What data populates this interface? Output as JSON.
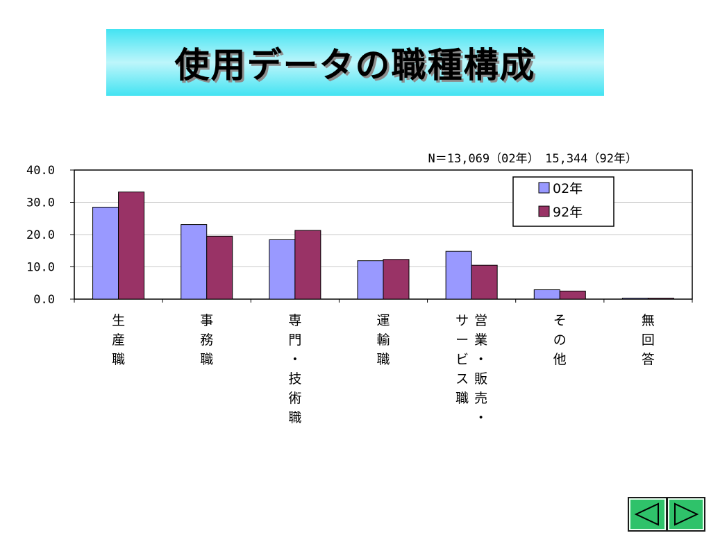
{
  "title": "使用データの職種構成",
  "chart_data": {
    "type": "bar",
    "note": "N＝13,069（02年）　15,344（92年）",
    "categories": [
      [
        "生",
        "産",
        "職"
      ],
      [
        "事",
        "務",
        "職"
      ],
      [
        "専",
        "門",
        "・",
        "技",
        "術",
        "職"
      ],
      [
        "運",
        "輸",
        "職"
      ],
      [
        [
          "営",
          "業",
          "・",
          "販",
          "売",
          "・"
        ],
        [
          "サ",
          "ー",
          "ビ",
          "ス",
          "職"
        ]
      ],
      [
        "そ",
        "の",
        "他"
      ],
      [
        "無",
        "回",
        "答"
      ]
    ],
    "series": [
      {
        "name": "02年",
        "color": "#9999ff",
        "values": [
          28.5,
          23.1,
          18.4,
          11.9,
          14.8,
          2.9,
          0.3
        ]
      },
      {
        "name": "92年",
        "color": "#993366",
        "values": [
          33.2,
          19.5,
          21.3,
          12.3,
          10.5,
          2.5,
          0.3
        ]
      }
    ],
    "ylim": [
      0,
      40
    ],
    "yticks": [
      "0.0",
      "10.0",
      "20.0",
      "30.0",
      "40.0"
    ],
    "grid": true,
    "legend": "top-right"
  },
  "nav": {
    "prev_icon": "triangle-left-icon",
    "next_icon": "triangle-right-icon",
    "color": "#2fc26a"
  }
}
